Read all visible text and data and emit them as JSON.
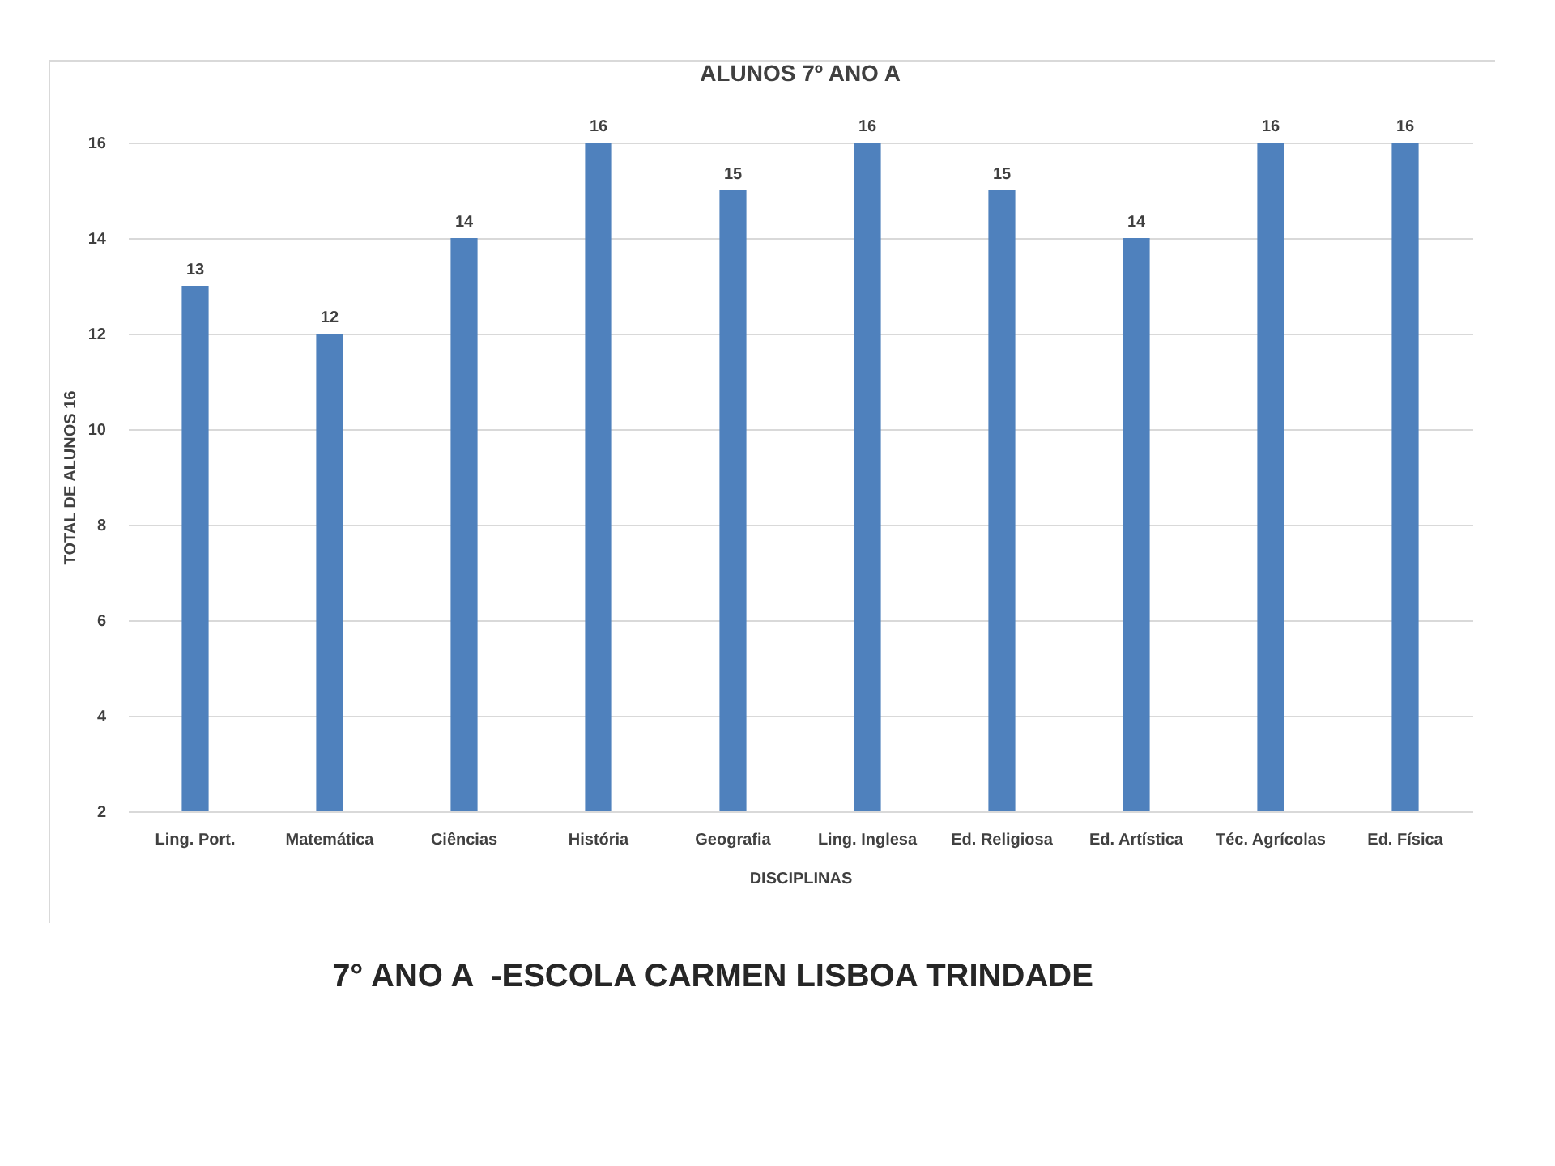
{
  "chart_data": {
    "type": "bar",
    "title": "ALUNOS 7º ANO A",
    "xlabel": "DISCIPLINAS",
    "ylabel": "TOTAL DE ALUNOS 16",
    "categories": [
      "Ling. Port.",
      "Matemática",
      "Ciências",
      "História",
      "Geografia",
      "Ling. Inglesa",
      "Ed. Religiosa",
      "Ed. Artística",
      "Téc. Agrícolas",
      "Ed. Física"
    ],
    "values": [
      13,
      12,
      14,
      16,
      15,
      16,
      15,
      14,
      16,
      16
    ],
    "color": "#4f81bd",
    "ylim": [
      2,
      16
    ],
    "yticks": [
      2,
      4,
      6,
      8,
      10,
      12,
      14,
      16
    ],
    "grid": "y",
    "data_labels": true,
    "annotations": [
      "7° ANO A  -ESCOLA CARMEN LISBOA TRINDADE"
    ]
  }
}
